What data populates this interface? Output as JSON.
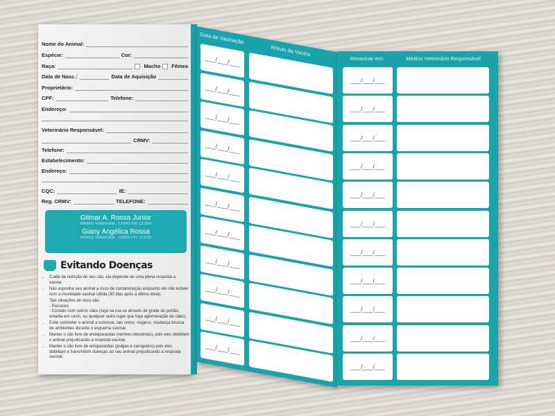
{
  "form": {
    "nome": "Nome do Animal:",
    "especie": "Espécie:",
    "cor": "Cor:",
    "raca": "Raça:",
    "macho": "Macho",
    "femea": "Fêmea",
    "nasc": "Data de Nasc.:",
    "aquisicao": "Data de Aquisição",
    "proprietario": "Proprietário:",
    "cpf": "CPF:",
    "telefone": "Telefone:",
    "endereco": "Endereço:",
    "vet": "Veterinário Responsável:",
    "crmv": "CRMV:",
    "estabelecimento": "Estabelecimento:",
    "cqc": "CQC:",
    "ie": "IE:",
    "reg": "Reg. CRMV:",
    "tel_caps": "TELEFONE:",
    "date_blank": "___/___/___"
  },
  "doctors": [
    {
      "name": "Gilmar A. Rossa Junior",
      "title": "Médico Veterinário . CRMV-PR 13.350"
    },
    {
      "name": "Giany Angélica Rossa",
      "title": "Médica Veterinária . CRMV-PR 12.816"
    }
  ],
  "tips": {
    "title": "Evitando Doenças",
    "items": [
      "Cuide da nutrição do seu cão, ela depende de uma plena resposta a vacina.",
      "Não esponha seu animal a risco de contaminação enquanto ele não estiver com a imunidade vacinal sólida (30 dias após a última dose).",
      "Tais situações de risco são:",
      "- Passeios",
      "- Contato com outros cães (seja na rua ou através de grade do portão, estadia em canis, ou qualquer outro lugar que haja aglomeração de cães).",
      "Evite submeter o animal a estresse, tais como: viagens, mudança brusca de ambientes durante o esquema vacinal.",
      "Manter o cão livre de endoparasitas (vermes intestinais), pois eles debilitam o animal prejudicando a resposta vacinal.",
      "Manter o cão livre de ectoparasitas (pulgas e carrapatos) pois eles debilitam e transmitem doenças ao seu animal prejudicando a resposta vacinal."
    ]
  },
  "vaccines": {
    "date_header": "Data de Vacinação",
    "label_header": "Rótulo da Vacina",
    "rows": 11
  },
  "revac": {
    "date_header": "Revacinar em:",
    "vet_header": "Médico Veterinário Responsável",
    "rows": 11
  },
  "colors": {
    "teal": "#1aa3ab"
  }
}
